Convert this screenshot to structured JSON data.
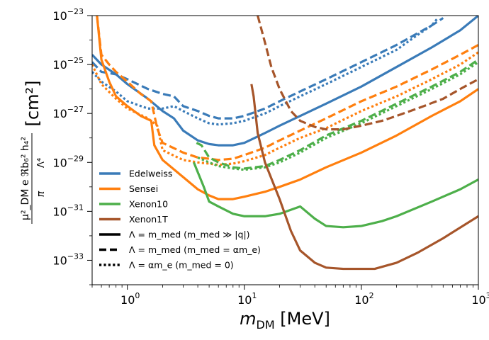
{
  "chart_data": {
    "type": "line",
    "xscale": "log",
    "yscale": "log",
    "xlim": [
      0.5,
      1000
    ],
    "ylim": [
      1e-34,
      1e-23
    ],
    "x_tick_labels": [
      {
        "value": 1,
        "base": "10",
        "exp": "0"
      },
      {
        "value": 10,
        "base": "10",
        "exp": "1"
      },
      {
        "value": 100,
        "base": "10",
        "exp": "2"
      },
      {
        "value": 1000,
        "base": "10",
        "exp": "3"
      }
    ],
    "y_tick_labels": [
      {
        "value": 1e-33,
        "base": "10",
        "exp": "−33"
      },
      {
        "value": 1e-31,
        "base": "10",
        "exp": "−31"
      },
      {
        "value": 1e-29,
        "base": "10",
        "exp": "−29"
      },
      {
        "value": 1e-27,
        "base": "10",
        "exp": "−27"
      },
      {
        "value": 1e-25,
        "base": "10",
        "exp": "−25"
      },
      {
        "value": 1e-23,
        "base": "10",
        "exp": "−23"
      }
    ],
    "xlabel": {
      "main": "m",
      "sub": "DM",
      "unit": " [MeV]"
    },
    "ylabel": {
      "frac_num": "μ²_DM e ℜb₆² h₄²",
      "frac_mid": "π",
      "lambda": "Λ⁴",
      "unit": "[cm²]"
    },
    "colors": {
      "Edelweiss": "#3a7bb8",
      "Sensei": "#ff7f0e",
      "Xenon10": "#4daf4a",
      "Xenon1T": "#a6552a"
    },
    "legend": {
      "placement": "lower-left",
      "experiments": [
        {
          "name": "Edelweiss",
          "color": "#3a7bb8"
        },
        {
          "name": "Sensei",
          "color": "#ff7f0e"
        },
        {
          "name": "Xenon10",
          "color": "#4daf4a"
        },
        {
          "name": "Xenon1T",
          "color": "#a6552a"
        }
      ],
      "styles": [
        {
          "style": "solid",
          "label": "Λ = m_med (m_med ≫ |q|)"
        },
        {
          "style": "dashed",
          "label": "Λ = m_med (m_med = αm_e)"
        },
        {
          "style": "dotted",
          "label": "Λ = αm_e  (m_med = 0)"
        }
      ]
    },
    "series": [
      {
        "name": "Edelweiss",
        "style": "solid",
        "points": [
          [
            0.5,
            -24.6
          ],
          [
            0.6,
            -25.0
          ],
          [
            0.8,
            -25.4
          ],
          [
            1,
            -25.8
          ],
          [
            1.5,
            -26.4
          ],
          [
            2,
            -26.9
          ],
          [
            2.5,
            -27.2
          ],
          [
            3,
            -27.7
          ],
          [
            4,
            -28.1
          ],
          [
            5,
            -28.25
          ],
          [
            6,
            -28.3
          ],
          [
            8,
            -28.3
          ],
          [
            10,
            -28.2
          ],
          [
            15,
            -27.8
          ],
          [
            20,
            -27.5
          ],
          [
            30,
            -27.1
          ],
          [
            50,
            -26.6
          ],
          [
            100,
            -25.9
          ],
          [
            200,
            -25.1
          ],
          [
            400,
            -24.3
          ],
          [
            700,
            -23.6
          ],
          [
            1000,
            -23.0
          ]
        ]
      },
      {
        "name": "Edelweiss",
        "style": "dashed",
        "points": [
          [
            0.5,
            -24.9
          ],
          [
            0.6,
            -25.3
          ],
          [
            0.8,
            -25.4
          ],
          [
            1,
            -25.6
          ],
          [
            1.5,
            -26.0
          ],
          [
            2,
            -26.2
          ],
          [
            2.5,
            -26.3
          ],
          [
            3,
            -26.7
          ],
          [
            4,
            -26.9
          ],
          [
            5,
            -27.1
          ],
          [
            6,
            -27.2
          ],
          [
            8,
            -27.2
          ],
          [
            10,
            -27.1
          ],
          [
            15,
            -26.8
          ],
          [
            20,
            -26.5
          ],
          [
            30,
            -26.1
          ],
          [
            50,
            -25.6
          ],
          [
            100,
            -24.9
          ],
          [
            200,
            -24.2
          ],
          [
            400,
            -23.4
          ],
          [
            500,
            -23.1
          ]
        ]
      },
      {
        "name": "Edelweiss",
        "style": "dotted",
        "points": [
          [
            0.5,
            -25.3
          ],
          [
            0.6,
            -25.7
          ],
          [
            0.8,
            -26.1
          ],
          [
            1,
            -26.5
          ],
          [
            1.5,
            -26.8
          ],
          [
            2,
            -26.8
          ],
          [
            2.5,
            -26.7
          ],
          [
            3,
            -26.9
          ],
          [
            4,
            -27.2
          ],
          [
            5,
            -27.4
          ],
          [
            6,
            -27.45
          ],
          [
            8,
            -27.4
          ],
          [
            10,
            -27.3
          ],
          [
            15,
            -27.0
          ],
          [
            20,
            -26.7
          ],
          [
            30,
            -26.3
          ],
          [
            50,
            -25.8
          ],
          [
            100,
            -25.1
          ],
          [
            200,
            -24.4
          ],
          [
            300,
            -23.8
          ],
          [
            400,
            -23.4
          ],
          [
            450,
            -23.1
          ]
        ]
      },
      {
        "name": "Sensei",
        "style": "solid",
        "points": [
          [
            0.55,
            -23.0
          ],
          [
            0.6,
            -24.8
          ],
          [
            0.7,
            -25.7
          ],
          [
            0.8,
            -26.3
          ],
          [
            1,
            -26.7
          ],
          [
            1.3,
            -27.1
          ],
          [
            1.6,
            -27.3
          ],
          [
            1.7,
            -28.3
          ],
          [
            2,
            -28.9
          ],
          [
            3,
            -29.6
          ],
          [
            4,
            -30.1
          ],
          [
            5,
            -30.35
          ],
          [
            6,
            -30.5
          ],
          [
            8,
            -30.5
          ],
          [
            10,
            -30.4
          ],
          [
            15,
            -30.2
          ],
          [
            20,
            -30.0
          ],
          [
            30,
            -29.7
          ],
          [
            50,
            -29.2
          ],
          [
            100,
            -28.6
          ],
          [
            200,
            -27.9
          ],
          [
            400,
            -27.1
          ],
          [
            700,
            -26.5
          ],
          [
            1000,
            -26.0
          ]
        ]
      },
      {
        "name": "Sensei",
        "style": "dashed",
        "points": [
          [
            0.55,
            -23.0
          ],
          [
            0.6,
            -24.6
          ],
          [
            0.7,
            -25.0
          ],
          [
            0.8,
            -25.3
          ],
          [
            1,
            -25.7
          ],
          [
            1.3,
            -26.2
          ],
          [
            1.6,
            -26.5
          ],
          [
            1.8,
            -27.6
          ],
          [
            2,
            -28.2
          ],
          [
            3,
            -28.6
          ],
          [
            4,
            -28.8
          ],
          [
            5,
            -28.85
          ],
          [
            6,
            -28.9
          ],
          [
            8,
            -28.85
          ],
          [
            10,
            -28.7
          ],
          [
            15,
            -28.4
          ],
          [
            20,
            -28.1
          ],
          [
            30,
            -27.7
          ],
          [
            50,
            -27.2
          ],
          [
            100,
            -26.5
          ],
          [
            200,
            -25.9
          ],
          [
            400,
            -25.2
          ],
          [
            700,
            -24.6
          ],
          [
            1000,
            -24.2
          ]
        ]
      },
      {
        "name": "Sensei",
        "style": "dotted",
        "points": [
          [
            0.5,
            -25.0
          ],
          [
            0.6,
            -25.8
          ],
          [
            0.8,
            -26.4
          ],
          [
            1,
            -26.8
          ],
          [
            1.5,
            -27.2
          ],
          [
            1.8,
            -27.5
          ],
          [
            2,
            -28.5
          ],
          [
            3,
            -28.9
          ],
          [
            4,
            -29.0
          ],
          [
            5,
            -29.05
          ],
          [
            6,
            -29.1
          ],
          [
            8,
            -29.05
          ],
          [
            10,
            -28.95
          ],
          [
            15,
            -28.7
          ],
          [
            20,
            -28.4
          ],
          [
            30,
            -28.0
          ],
          [
            50,
            -27.6
          ],
          [
            100,
            -26.9
          ],
          [
            200,
            -26.3
          ],
          [
            400,
            -25.6
          ],
          [
            700,
            -25.0
          ],
          [
            1000,
            -24.5
          ]
        ]
      },
      {
        "name": "Xenon10",
        "style": "solid",
        "points": [
          [
            3.7,
            -29.0
          ],
          [
            4,
            -29.4
          ],
          [
            4.5,
            -30.0
          ],
          [
            5,
            -30.6
          ],
          [
            6,
            -30.8
          ],
          [
            8,
            -31.1
          ],
          [
            10,
            -31.2
          ],
          [
            15,
            -31.2
          ],
          [
            20,
            -31.1
          ],
          [
            30,
            -30.8
          ],
          [
            40,
            -31.3
          ],
          [
            50,
            -31.6
          ],
          [
            70,
            -31.65
          ],
          [
            100,
            -31.6
          ],
          [
            150,
            -31.4
          ],
          [
            200,
            -31.2
          ],
          [
            400,
            -30.6
          ],
          [
            700,
            -30.1
          ],
          [
            1000,
            -29.7
          ]
        ]
      },
      {
        "name": "Xenon10",
        "style": "dashed",
        "points": [
          [
            3.9,
            -28.2
          ],
          [
            4.3,
            -28.3
          ],
          [
            5,
            -28.8
          ],
          [
            6,
            -29.0
          ],
          [
            8,
            -29.2
          ],
          [
            10,
            -29.25
          ],
          [
            15,
            -29.15
          ],
          [
            20,
            -28.9
          ],
          [
            30,
            -28.5
          ],
          [
            50,
            -27.9
          ],
          [
            100,
            -27.3
          ],
          [
            200,
            -26.6
          ],
          [
            400,
            -25.9
          ],
          [
            700,
            -25.3
          ],
          [
            1000,
            -24.8
          ]
        ]
      },
      {
        "name": "Xenon10",
        "style": "dotted",
        "points": [
          [
            4,
            -28.8
          ],
          [
            5,
            -29.0
          ],
          [
            6,
            -29.15
          ],
          [
            8,
            -29.25
          ],
          [
            10,
            -29.3
          ],
          [
            15,
            -29.2
          ],
          [
            20,
            -29.0
          ],
          [
            30,
            -28.6
          ],
          [
            50,
            -28.0
          ],
          [
            100,
            -27.4
          ],
          [
            200,
            -26.7
          ],
          [
            400,
            -26.0
          ],
          [
            700,
            -25.4
          ],
          [
            1000,
            -24.9
          ]
        ]
      },
      {
        "name": "Xenon1T",
        "style": "solid",
        "points": [
          [
            11.5,
            -25.8
          ],
          [
            12,
            -26.3
          ],
          [
            13,
            -27.8
          ],
          [
            15,
            -29.0
          ],
          [
            20,
            -30.5
          ],
          [
            25,
            -31.8
          ],
          [
            30,
            -32.6
          ],
          [
            40,
            -33.1
          ],
          [
            50,
            -33.3
          ],
          [
            70,
            -33.35
          ],
          [
            100,
            -33.35
          ],
          [
            130,
            -33.35
          ],
          [
            200,
            -33.1
          ],
          [
            300,
            -32.7
          ],
          [
            500,
            -32.1
          ],
          [
            1000,
            -31.2
          ]
        ]
      },
      {
        "name": "Xenon1T",
        "style": "dashed",
        "points": [
          [
            13,
            -23.0
          ],
          [
            15,
            -24.1
          ],
          [
            17,
            -25.1
          ],
          [
            20,
            -26.0
          ],
          [
            25,
            -26.9
          ],
          [
            30,
            -27.3
          ],
          [
            40,
            -27.55
          ],
          [
            50,
            -27.65
          ],
          [
            70,
            -27.65
          ],
          [
            100,
            -27.5
          ],
          [
            150,
            -27.3
          ],
          [
            200,
            -27.1
          ],
          [
            300,
            -26.8
          ],
          [
            500,
            -26.4
          ],
          [
            700,
            -26.0
          ],
          [
            1000,
            -25.6
          ]
        ]
      }
    ]
  }
}
